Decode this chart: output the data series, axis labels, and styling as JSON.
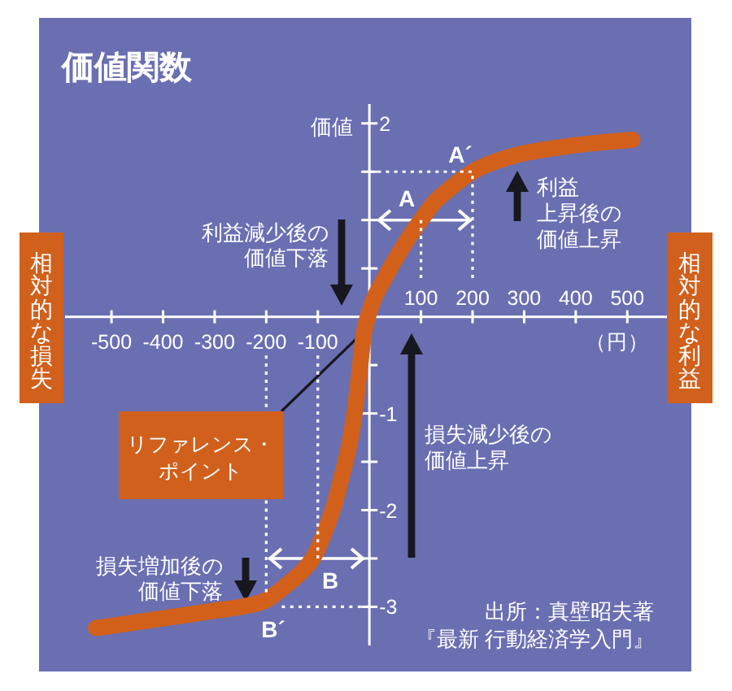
{
  "chart_data": {
    "type": "line",
    "title": "価値関数",
    "xlabel": "（円）",
    "ylabel": "価値",
    "xlim": [
      -590,
      580
    ],
    "ylim": [
      -3.4,
      2.2
    ],
    "xticks": [
      -500,
      -400,
      -300,
      -200,
      -100
    ],
    "x2lim": [
      -590,
      580
    ],
    "x2ticks": [
      100,
      200,
      300,
      400,
      500
    ],
    "yticks": [
      2,
      {
        "value": 1.5,
        "label": null
      },
      {
        "value": 1,
        "label": null
      },
      {
        "value": 0.5,
        "label": null
      },
      {
        "value": -0.5,
        "label": null
      },
      -1,
      {
        "value": -1.5,
        "label": null
      },
      -2,
      {
        "value": -2.5,
        "label": null
      },
      -3
    ],
    "series": [
      {
        "color": "#d2601a",
        "line_style": "solid",
        "x": [
          -530,
          -400,
          -300,
          -250,
          -200,
          -160,
          -130,
          -110,
          -100,
          -85,
          -70,
          -55,
          -40,
          -30,
          -20,
          -10,
          0,
          10,
          25,
          40,
          60,
          80,
          100,
          125,
          150,
          200,
          270,
          380,
          510
        ],
        "values": [
          -3.22,
          -3.12,
          -3.04,
          -3.0,
          -2.93,
          -2.77,
          -2.63,
          -2.5,
          -2.4,
          -2.2,
          -1.98,
          -1.68,
          -1.35,
          -1.05,
          -0.6,
          -0.15,
          0.05,
          0.2,
          0.35,
          0.5,
          0.68,
          0.85,
          1.0,
          1.18,
          1.3,
          1.5,
          1.65,
          1.76,
          1.83
        ]
      },
      {
        "color": "#ffffff",
        "line_style": "dotted",
        "x": [
          100,
          100
        ],
        "values": [
          0.4,
          1
        ]
      },
      {
        "color": "#ffffff",
        "line_style": "dotted",
        "x": [
          0,
          200,
          200
        ],
        "values": [
          1.5,
          1.5,
          0.4
        ]
      },
      {
        "color": "#ffffff",
        "line_style": "dotted",
        "x": [
          -100,
          -100
        ],
        "values": [
          -0.4,
          -2.5
        ]
      },
      {
        "color": "#ffffff",
        "line_style": "dotted",
        "x": [
          -200,
          -200
        ],
        "values": [
          -0.4,
          -2.85
        ]
      },
      {
        "color": "#ffffff",
        "line_style": "dotted",
        "x": [
          -170,
          0
        ],
        "values": [
          -3,
          -3
        ]
      }
    ],
    "annotations": [
      {
        "text": "A",
        "x": 100,
        "y": 1
      },
      "A´",
      {
        "text": "B",
        "x": -100,
        "y": -2.5
      },
      "B´",
      "利益減少後の価値下落",
      "利益上昇後の価値上昇",
      "損失減少後の価値上昇",
      "損失増加後の価値下落",
      {
        "text": "リファレンス・ポイント",
        "x": -20,
        "y": -0.2
      },
      "相対的な損失",
      "相対的な利益",
      "出所：真壁昭夫著『最新 行動経済学入門』"
    ]
  }
}
